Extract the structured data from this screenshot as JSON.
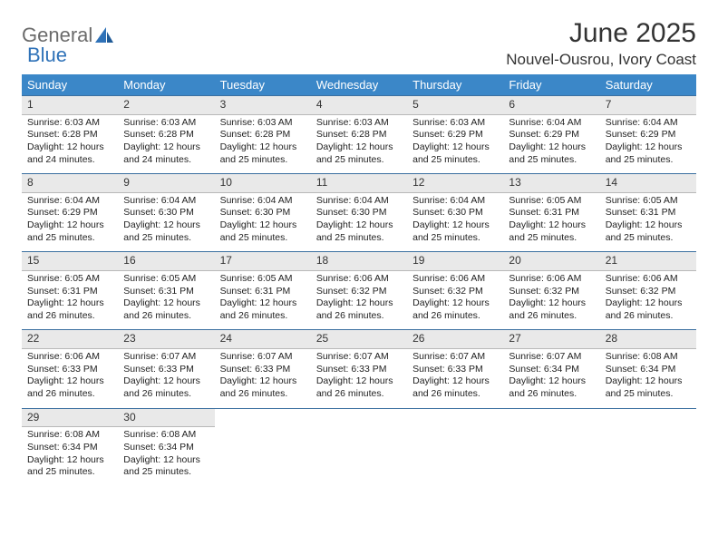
{
  "logo": {
    "text1": "General",
    "text2": "Blue"
  },
  "title": "June 2025",
  "location": "Nouvel-Ousrou, Ivory Coast",
  "colors": {
    "header_bg": "#3b87c8",
    "header_text": "#ffffff",
    "daynum_bg": "#e9e9e9",
    "border": "#3b6fa0",
    "logo_gray": "#6b6b6b",
    "logo_blue": "#2f72b8"
  },
  "weekdays": [
    "Sunday",
    "Monday",
    "Tuesday",
    "Wednesday",
    "Thursday",
    "Friday",
    "Saturday"
  ],
  "weeks": [
    [
      {
        "n": "1",
        "sr": "Sunrise: 6:03 AM",
        "ss": "Sunset: 6:28 PM",
        "d1": "Daylight: 12 hours",
        "d2": "and 24 minutes."
      },
      {
        "n": "2",
        "sr": "Sunrise: 6:03 AM",
        "ss": "Sunset: 6:28 PM",
        "d1": "Daylight: 12 hours",
        "d2": "and 24 minutes."
      },
      {
        "n": "3",
        "sr": "Sunrise: 6:03 AM",
        "ss": "Sunset: 6:28 PM",
        "d1": "Daylight: 12 hours",
        "d2": "and 25 minutes."
      },
      {
        "n": "4",
        "sr": "Sunrise: 6:03 AM",
        "ss": "Sunset: 6:28 PM",
        "d1": "Daylight: 12 hours",
        "d2": "and 25 minutes."
      },
      {
        "n": "5",
        "sr": "Sunrise: 6:03 AM",
        "ss": "Sunset: 6:29 PM",
        "d1": "Daylight: 12 hours",
        "d2": "and 25 minutes."
      },
      {
        "n": "6",
        "sr": "Sunrise: 6:04 AM",
        "ss": "Sunset: 6:29 PM",
        "d1": "Daylight: 12 hours",
        "d2": "and 25 minutes."
      },
      {
        "n": "7",
        "sr": "Sunrise: 6:04 AM",
        "ss": "Sunset: 6:29 PM",
        "d1": "Daylight: 12 hours",
        "d2": "and 25 minutes."
      }
    ],
    [
      {
        "n": "8",
        "sr": "Sunrise: 6:04 AM",
        "ss": "Sunset: 6:29 PM",
        "d1": "Daylight: 12 hours",
        "d2": "and 25 minutes."
      },
      {
        "n": "9",
        "sr": "Sunrise: 6:04 AM",
        "ss": "Sunset: 6:30 PM",
        "d1": "Daylight: 12 hours",
        "d2": "and 25 minutes."
      },
      {
        "n": "10",
        "sr": "Sunrise: 6:04 AM",
        "ss": "Sunset: 6:30 PM",
        "d1": "Daylight: 12 hours",
        "d2": "and 25 minutes."
      },
      {
        "n": "11",
        "sr": "Sunrise: 6:04 AM",
        "ss": "Sunset: 6:30 PM",
        "d1": "Daylight: 12 hours",
        "d2": "and 25 minutes."
      },
      {
        "n": "12",
        "sr": "Sunrise: 6:04 AM",
        "ss": "Sunset: 6:30 PM",
        "d1": "Daylight: 12 hours",
        "d2": "and 25 minutes."
      },
      {
        "n": "13",
        "sr": "Sunrise: 6:05 AM",
        "ss": "Sunset: 6:31 PM",
        "d1": "Daylight: 12 hours",
        "d2": "and 25 minutes."
      },
      {
        "n": "14",
        "sr": "Sunrise: 6:05 AM",
        "ss": "Sunset: 6:31 PM",
        "d1": "Daylight: 12 hours",
        "d2": "and 25 minutes."
      }
    ],
    [
      {
        "n": "15",
        "sr": "Sunrise: 6:05 AM",
        "ss": "Sunset: 6:31 PM",
        "d1": "Daylight: 12 hours",
        "d2": "and 26 minutes."
      },
      {
        "n": "16",
        "sr": "Sunrise: 6:05 AM",
        "ss": "Sunset: 6:31 PM",
        "d1": "Daylight: 12 hours",
        "d2": "and 26 minutes."
      },
      {
        "n": "17",
        "sr": "Sunrise: 6:05 AM",
        "ss": "Sunset: 6:31 PM",
        "d1": "Daylight: 12 hours",
        "d2": "and 26 minutes."
      },
      {
        "n": "18",
        "sr": "Sunrise: 6:06 AM",
        "ss": "Sunset: 6:32 PM",
        "d1": "Daylight: 12 hours",
        "d2": "and 26 minutes."
      },
      {
        "n": "19",
        "sr": "Sunrise: 6:06 AM",
        "ss": "Sunset: 6:32 PM",
        "d1": "Daylight: 12 hours",
        "d2": "and 26 minutes."
      },
      {
        "n": "20",
        "sr": "Sunrise: 6:06 AM",
        "ss": "Sunset: 6:32 PM",
        "d1": "Daylight: 12 hours",
        "d2": "and 26 minutes."
      },
      {
        "n": "21",
        "sr": "Sunrise: 6:06 AM",
        "ss": "Sunset: 6:32 PM",
        "d1": "Daylight: 12 hours",
        "d2": "and 26 minutes."
      }
    ],
    [
      {
        "n": "22",
        "sr": "Sunrise: 6:06 AM",
        "ss": "Sunset: 6:33 PM",
        "d1": "Daylight: 12 hours",
        "d2": "and 26 minutes."
      },
      {
        "n": "23",
        "sr": "Sunrise: 6:07 AM",
        "ss": "Sunset: 6:33 PM",
        "d1": "Daylight: 12 hours",
        "d2": "and 26 minutes."
      },
      {
        "n": "24",
        "sr": "Sunrise: 6:07 AM",
        "ss": "Sunset: 6:33 PM",
        "d1": "Daylight: 12 hours",
        "d2": "and 26 minutes."
      },
      {
        "n": "25",
        "sr": "Sunrise: 6:07 AM",
        "ss": "Sunset: 6:33 PM",
        "d1": "Daylight: 12 hours",
        "d2": "and 26 minutes."
      },
      {
        "n": "26",
        "sr": "Sunrise: 6:07 AM",
        "ss": "Sunset: 6:33 PM",
        "d1": "Daylight: 12 hours",
        "d2": "and 26 minutes."
      },
      {
        "n": "27",
        "sr": "Sunrise: 6:07 AM",
        "ss": "Sunset: 6:34 PM",
        "d1": "Daylight: 12 hours",
        "d2": "and 26 minutes."
      },
      {
        "n": "28",
        "sr": "Sunrise: 6:08 AM",
        "ss": "Sunset: 6:34 PM",
        "d1": "Daylight: 12 hours",
        "d2": "and 25 minutes."
      }
    ],
    [
      {
        "n": "29",
        "sr": "Sunrise: 6:08 AM",
        "ss": "Sunset: 6:34 PM",
        "d1": "Daylight: 12 hours",
        "d2": "and 25 minutes."
      },
      {
        "n": "30",
        "sr": "Sunrise: 6:08 AM",
        "ss": "Sunset: 6:34 PM",
        "d1": "Daylight: 12 hours",
        "d2": "and 25 minutes."
      },
      null,
      null,
      null,
      null,
      null
    ]
  ]
}
